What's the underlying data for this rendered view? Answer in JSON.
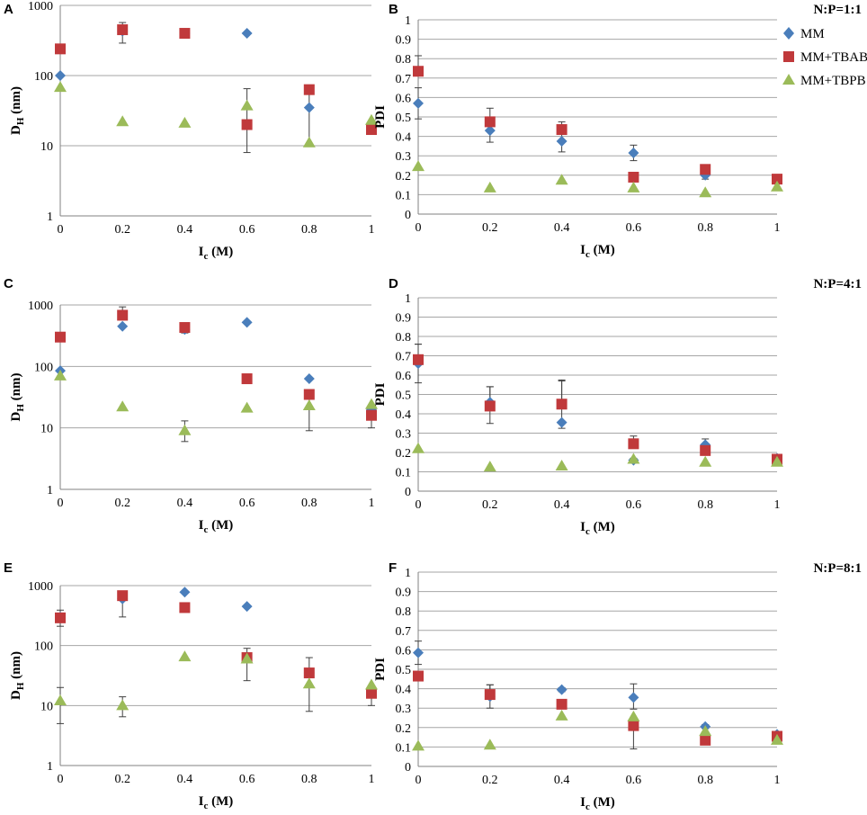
{
  "colors": {
    "MM": "#4a7ebb",
    "MM+TBAB": "#c0393b",
    "MM+TBPB": "#9bbb59",
    "grid": "#a6a6a6",
    "errorbar": "#404040"
  },
  "legend": {
    "entries": [
      {
        "series": "MM",
        "label": "MM",
        "icon": "diamond-icon"
      },
      {
        "series": "MM+TBAB",
        "label": "MM+TBAB",
        "icon": "square-icon"
      },
      {
        "series": "MM+TBPB",
        "label": "MM+TBPB",
        "icon": "triangle-icon"
      }
    ]
  },
  "chart_data": [
    {
      "panel": "A",
      "type": "scatter",
      "scale": "log",
      "xlabel": "I",
      "xlabel_sub": "c",
      "xlabel_unit": " (M)",
      "ylabel": "D",
      "ylabel_sub": "H",
      "ylabel_unit": " (nm)",
      "xlim": [
        0,
        1
      ],
      "ylim": [
        1,
        1000
      ],
      "x_ticks": [
        "0",
        "0.2",
        "0.4",
        "0.6",
        "0.8",
        "1"
      ],
      "y_ticks": [
        "1",
        "10",
        "100",
        "1000"
      ],
      "series": [
        {
          "name": "MM",
          "x": [
            0,
            0.2,
            0.4,
            0.6,
            0.8,
            1
          ],
          "y": [
            100,
            430,
            400,
            400,
            35,
            18
          ],
          "err_lo": [
            0,
            0,
            0,
            0,
            25,
            0
          ],
          "err_hi": [
            0,
            0,
            0,
            0,
            30,
            0
          ]
        },
        {
          "name": "MM+TBAB",
          "x": [
            0,
            0.2,
            0.4,
            0.6,
            0.8,
            1
          ],
          "y": [
            240,
            450,
            400,
            20,
            63,
            17
          ],
          "err_lo": [
            0,
            160,
            0,
            12,
            0,
            0
          ],
          "err_hi": [
            0,
            120,
            0,
            45,
            0,
            0
          ]
        },
        {
          "name": "MM+TBPB",
          "x": [
            0,
            0.2,
            0.4,
            0.6,
            0.8,
            1
          ],
          "y": [
            68,
            22,
            21,
            37,
            11,
            23
          ],
          "err_lo": [
            0,
            0,
            0,
            0,
            0,
            0
          ],
          "err_hi": [
            0,
            0,
            0,
            0,
            0,
            0
          ]
        }
      ]
    },
    {
      "panel": "B",
      "type": "scatter",
      "scale": "linear",
      "ratio_label": "N:P=1:1",
      "xlabel": "I",
      "xlabel_sub": "c",
      "xlabel_unit": " (M)",
      "ylabel": "PDI",
      "xlim": [
        0,
        1
      ],
      "ylim": [
        0,
        1
      ],
      "x_ticks": [
        "0",
        "0.2",
        "0.4",
        "0.6",
        "0.8",
        "1"
      ],
      "y_ticks": [
        "0",
        "0.1",
        "0.2",
        "0.3",
        "0.4",
        "0.5",
        "0.6",
        "0.7",
        "0.8",
        "0.9",
        "1"
      ],
      "series": [
        {
          "name": "MM",
          "x": [
            0,
            0.2,
            0.4,
            0.6,
            0.8,
            1
          ],
          "y": [
            0.57,
            0.43,
            0.375,
            0.315,
            0.2,
            0.175
          ],
          "err_lo": [
            0.08,
            0.06,
            0.055,
            0.04,
            0.02,
            0.01
          ],
          "err_hi": [
            0.08,
            0.06,
            0.055,
            0.04,
            0.02,
            0.01
          ]
        },
        {
          "name": "MM+TBAB",
          "x": [
            0,
            0.2,
            0.4,
            0.6,
            0.8,
            1
          ],
          "y": [
            0.735,
            0.475,
            0.435,
            0.19,
            0.23,
            0.18
          ],
          "err_lo": [
            0,
            0,
            0,
            0,
            0,
            0
          ],
          "err_hi": [
            0.08,
            0.07,
            0.04,
            0,
            0,
            0
          ]
        },
        {
          "name": "MM+TBPB",
          "x": [
            0,
            0.2,
            0.4,
            0.6,
            0.8,
            1
          ],
          "y": [
            0.245,
            0.135,
            0.175,
            0.135,
            0.11,
            0.14
          ],
          "err_lo": [
            0,
            0,
            0,
            0,
            0,
            0
          ],
          "err_hi": [
            0,
            0,
            0,
            0,
            0,
            0
          ]
        }
      ]
    },
    {
      "panel": "C",
      "type": "scatter",
      "scale": "log",
      "xlabel": "I",
      "xlabel_sub": "c",
      "xlabel_unit": " (M)",
      "ylabel": "D",
      "ylabel_sub": "H",
      "ylabel_unit": " (nm)",
      "xlim": [
        0,
        1
      ],
      "ylim": [
        1,
        1000
      ],
      "x_ticks": [
        "0",
        "0.2",
        "0.4",
        "0.6",
        "0.8",
        "1"
      ],
      "y_ticks": [
        "1",
        "10",
        "100",
        "1000"
      ],
      "series": [
        {
          "name": "MM",
          "x": [
            0,
            0.2,
            0.4,
            0.6,
            0.8,
            1
          ],
          "y": [
            85,
            450,
            400,
            520,
            63,
            20
          ],
          "err_lo": [
            0,
            0,
            0,
            0,
            0,
            0
          ],
          "err_hi": [
            0,
            0,
            0,
            0,
            0,
            0
          ]
        },
        {
          "name": "MM+TBAB",
          "x": [
            0,
            0.2,
            0.4,
            0.6,
            0.8,
            1
          ],
          "y": [
            300,
            680,
            430,
            63,
            35,
            16
          ],
          "err_lo": [
            0,
            0,
            80,
            0,
            26,
            6
          ],
          "err_hi": [
            0,
            250,
            0,
            0,
            0,
            0
          ]
        },
        {
          "name": "MM+TBPB",
          "x": [
            0,
            0.2,
            0.4,
            0.6,
            0.8,
            1
          ],
          "y": [
            70,
            22,
            9,
            21,
            23,
            24
          ],
          "err_lo": [
            0,
            0,
            3,
            0,
            0,
            0
          ],
          "err_hi": [
            0,
            0,
            4,
            0,
            0,
            0
          ]
        }
      ]
    },
    {
      "panel": "D",
      "type": "scatter",
      "scale": "linear",
      "ratio_label": "N:P=4:1",
      "xlabel": "I",
      "xlabel_sub": "c",
      "xlabel_unit": " (M)",
      "ylabel": "PDI",
      "xlim": [
        0,
        1
      ],
      "ylim": [
        0,
        1
      ],
      "x_ticks": [
        "0",
        "0.2",
        "0.4",
        "0.6",
        "0.8",
        "1"
      ],
      "y_ticks": [
        "0",
        "0.1",
        "0.2",
        "0.3",
        "0.4",
        "0.5",
        "0.6",
        "0.7",
        "0.8",
        "0.9",
        "1"
      ],
      "series": [
        {
          "name": "MM",
          "x": [
            0,
            0.2,
            0.4,
            0.6,
            0.8,
            1
          ],
          "y": [
            0.66,
            0.46,
            0.355,
            0.16,
            0.24,
            0.17
          ],
          "err_lo": [
            0.1,
            0.11,
            0.03,
            0.01,
            0.02,
            0.01
          ],
          "err_hi": [
            0.1,
            0.08,
            0.22,
            0.01,
            0.03,
            0.01
          ]
        },
        {
          "name": "MM+TBAB",
          "x": [
            0,
            0.2,
            0.4,
            0.6,
            0.8,
            1
          ],
          "y": [
            0.68,
            0.44,
            0.45,
            0.245,
            0.21,
            0.165
          ],
          "err_lo": [
            0,
            0,
            0,
            0,
            0,
            0
          ],
          "err_hi": [
            0.08,
            0.1,
            0.12,
            0.04,
            0,
            0
          ]
        },
        {
          "name": "MM+TBPB",
          "x": [
            0,
            0.2,
            0.4,
            0.6,
            0.8,
            1
          ],
          "y": [
            0.22,
            0.125,
            0.13,
            0.165,
            0.15,
            0.15
          ],
          "err_lo": [
            0,
            0,
            0,
            0,
            0,
            0
          ],
          "err_hi": [
            0,
            0,
            0,
            0,
            0,
            0
          ]
        }
      ]
    },
    {
      "panel": "E",
      "type": "scatter",
      "scale": "log",
      "xlabel": "I",
      "xlabel_sub": "c",
      "xlabel_unit": " (M)",
      "ylabel": "D",
      "ylabel_sub": "H",
      "ylabel_unit": " (nm)",
      "xlim": [
        0,
        1
      ],
      "ylim": [
        1,
        1000
      ],
      "x_ticks": [
        "0",
        "0.2",
        "0.4",
        "0.6",
        "0.8",
        "1"
      ],
      "y_ticks": [
        "1",
        "10",
        "100",
        "1000"
      ],
      "series": [
        {
          "name": "MM",
          "x": [
            0,
            0.2,
            0.4,
            0.6,
            0.8,
            1
          ],
          "y": [
            300,
            600,
            780,
            450,
            35,
            18
          ],
          "err_lo": [
            90,
            300,
            0,
            0,
            0,
            0
          ],
          "err_hi": [
            90,
            0,
            0,
            0,
            0,
            0
          ]
        },
        {
          "name": "MM+TBAB",
          "x": [
            0,
            0.2,
            0.4,
            0.6,
            0.8,
            1
          ],
          "y": [
            290,
            680,
            430,
            63,
            35,
            16
          ],
          "err_lo": [
            0,
            0,
            0,
            37,
            27,
            6
          ],
          "err_hi": [
            0,
            0,
            0,
            27,
            28,
            0
          ]
        },
        {
          "name": "MM+TBPB",
          "x": [
            0,
            0.2,
            0.4,
            0.6,
            0.8,
            1
          ],
          "y": [
            12,
            10,
            65,
            60,
            23,
            22
          ],
          "err_lo": [
            7,
            3.5,
            0,
            0,
            0,
            0
          ],
          "err_hi": [
            8,
            4,
            0,
            0,
            0,
            0
          ]
        }
      ]
    },
    {
      "panel": "F",
      "type": "scatter",
      "scale": "linear",
      "ratio_label": "N:P=8:1",
      "xlabel": "I",
      "xlabel_sub": "c",
      "xlabel_unit": " (M)",
      "ylabel": "PDI",
      "xlim": [
        0,
        1
      ],
      "ylim": [
        0,
        1
      ],
      "x_ticks": [
        "0",
        "0.2",
        "0.4",
        "0.6",
        "0.8",
        "1"
      ],
      "y_ticks": [
        "0",
        "0.1",
        "0.2",
        "0.3",
        "0.4",
        "0.5",
        "0.6",
        "0.7",
        "0.8",
        "0.9",
        "1"
      ],
      "series": [
        {
          "name": "MM",
          "x": [
            0,
            0.2,
            0.4,
            0.6,
            0.8,
            1
          ],
          "y": [
            0.585,
            0.36,
            0.395,
            0.355,
            0.205,
            0.165
          ],
          "err_lo": [
            0.06,
            0.06,
            0.01,
            0.06,
            0.01,
            0.01
          ],
          "err_hi": [
            0.06,
            0.06,
            0.01,
            0.07,
            0.01,
            0.01
          ]
        },
        {
          "name": "MM+TBAB",
          "x": [
            0,
            0.2,
            0.4,
            0.6,
            0.8,
            1
          ],
          "y": [
            0.465,
            0.37,
            0.32,
            0.21,
            0.135,
            0.155
          ],
          "err_lo": [
            0,
            0,
            0,
            0.12,
            0,
            0
          ],
          "err_hi": [
            0,
            0.05,
            0,
            0,
            0,
            0
          ]
        },
        {
          "name": "MM+TBPB",
          "x": [
            0,
            0.2,
            0.4,
            0.6,
            0.8,
            1
          ],
          "y": [
            0.105,
            0.11,
            0.26,
            0.255,
            0.18,
            0.135
          ],
          "err_lo": [
            0,
            0,
            0,
            0,
            0,
            0
          ],
          "err_hi": [
            0,
            0,
            0,
            0,
            0,
            0
          ]
        }
      ]
    }
  ]
}
